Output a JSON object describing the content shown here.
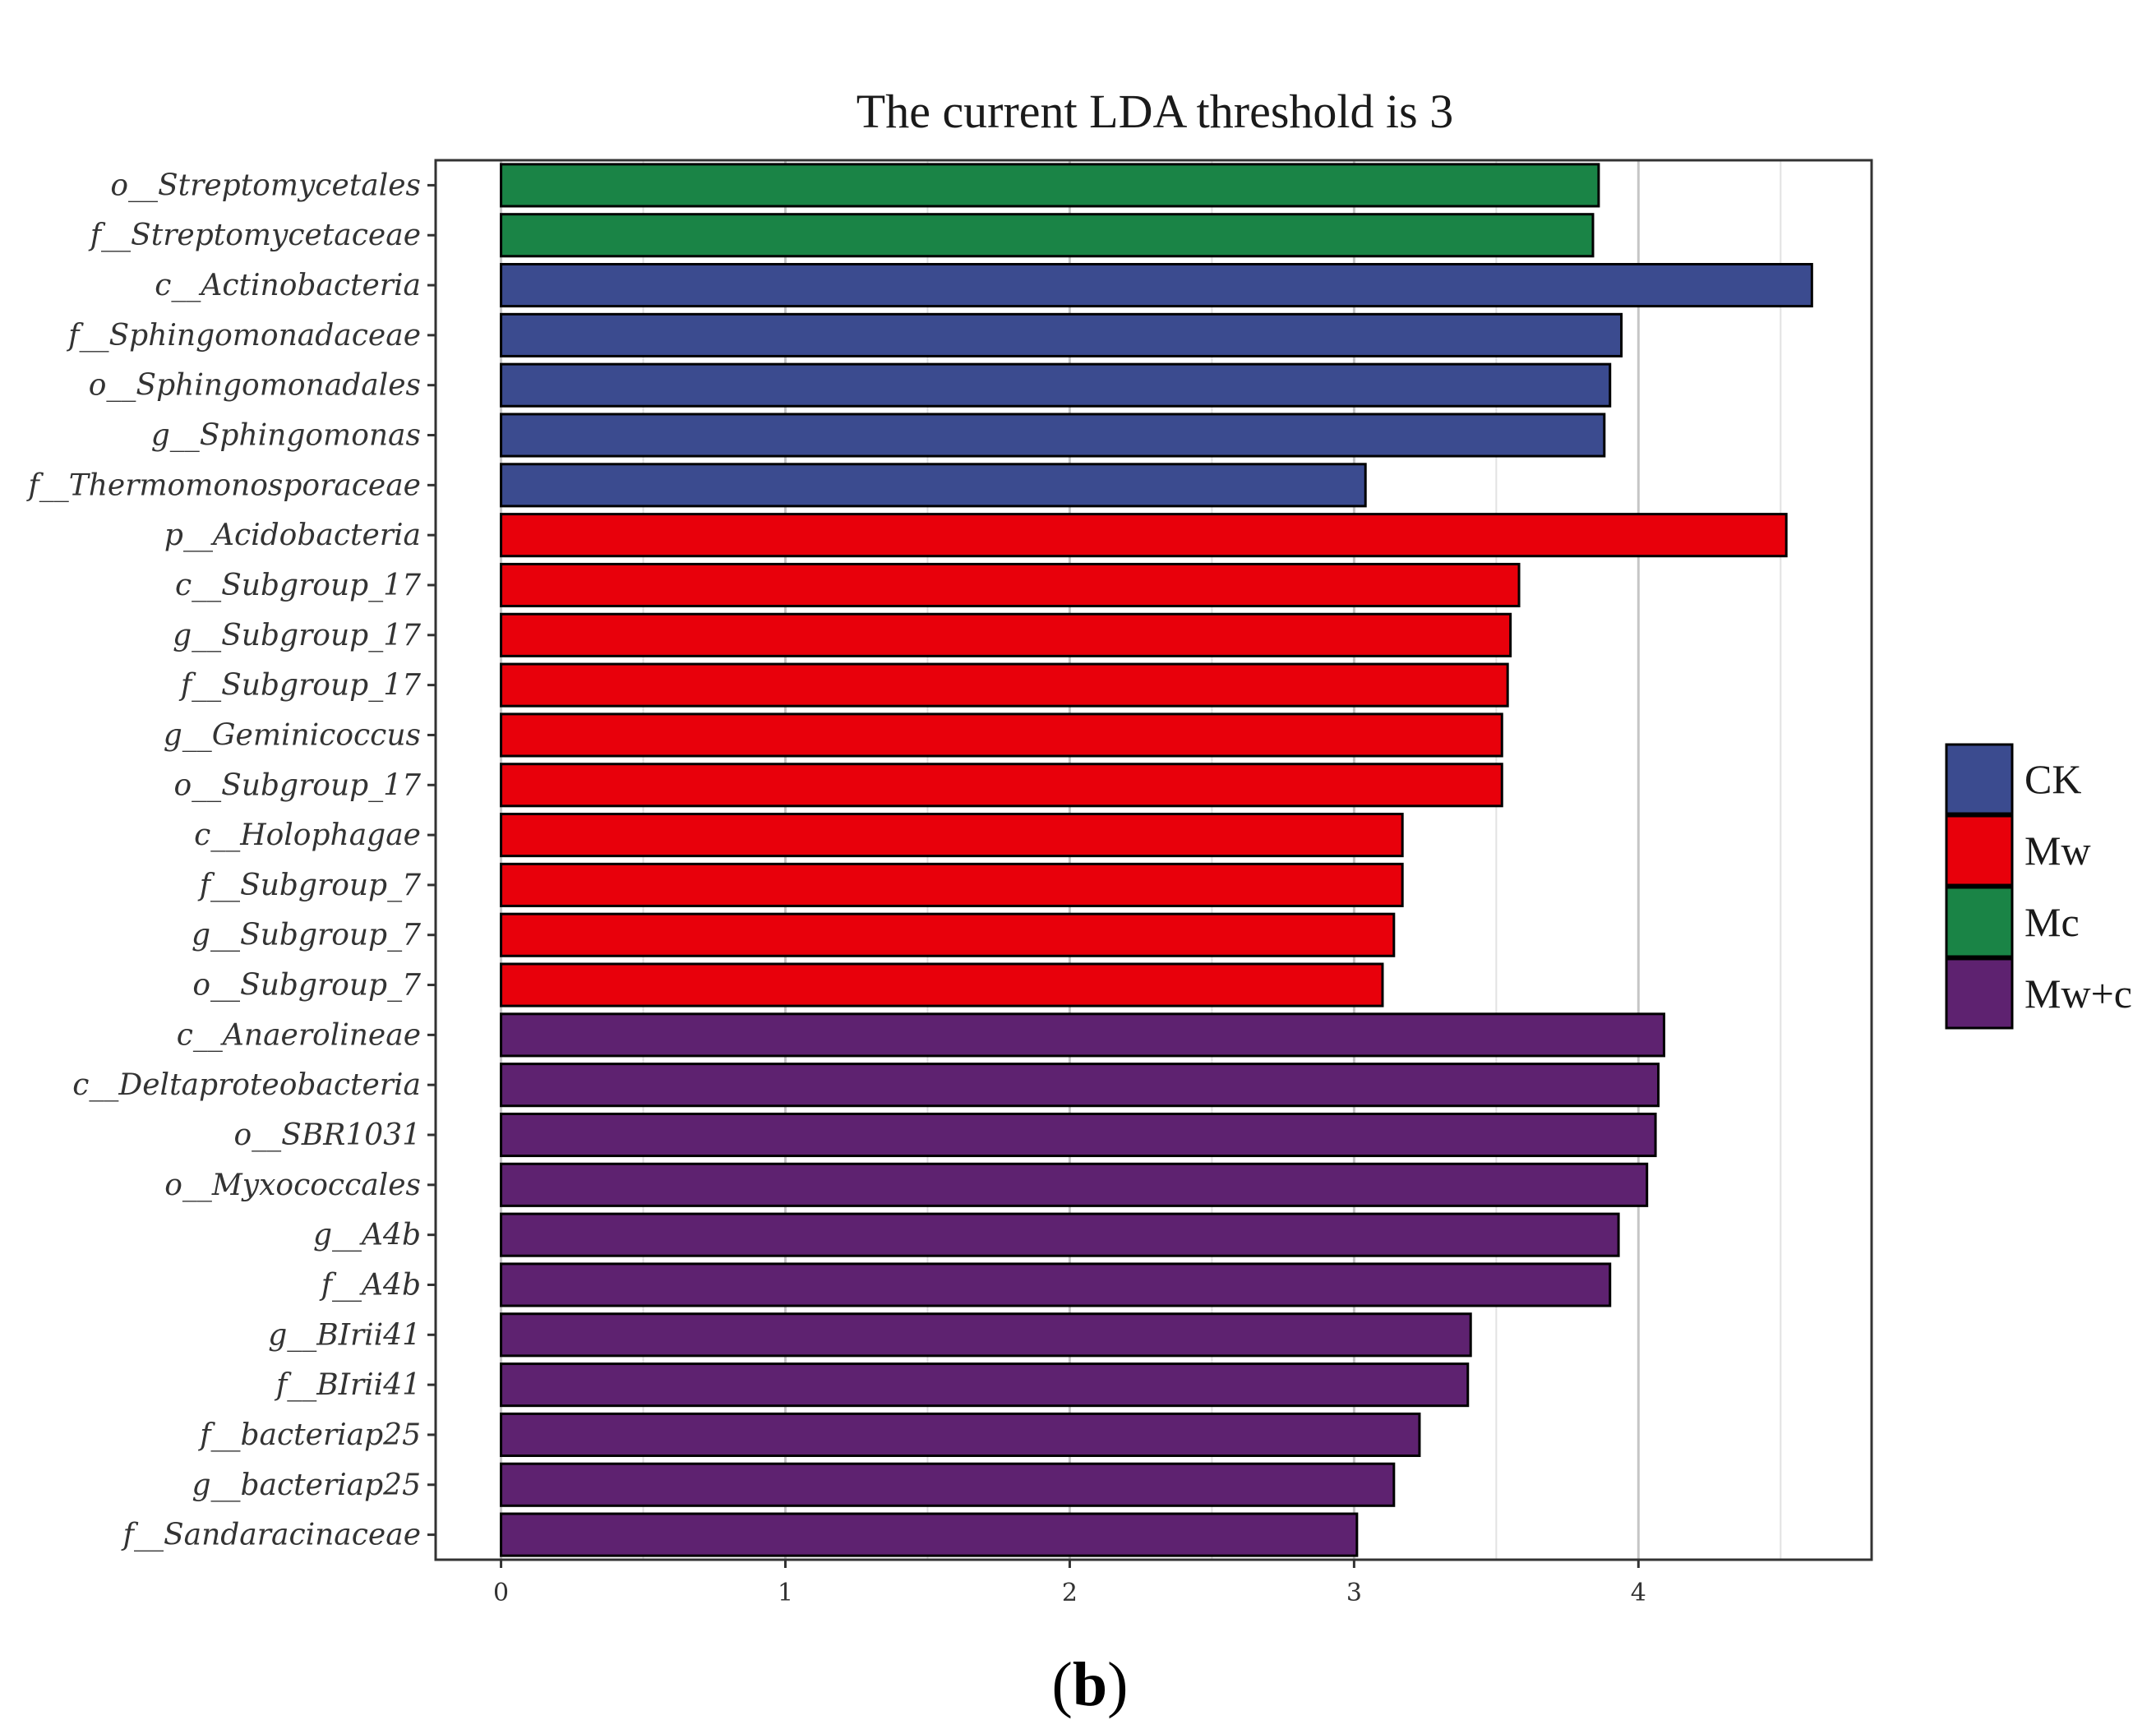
{
  "chart_data": {
    "type": "bar",
    "orientation": "horizontal",
    "title": "The current LDA threshold is 3",
    "caption_prefix": "(",
    "caption_letter": "b",
    "caption_suffix": ")",
    "xlabel": "",
    "ylabel": "",
    "xlim": [
      -0.23,
      4.82
    ],
    "xticks": [
      "0",
      "1",
      "2",
      "3",
      "4"
    ],
    "grid": true,
    "legend_position": "right",
    "groups": [
      {
        "name": "CK",
        "color": "#3b4b8f"
      },
      {
        "name": "Mw",
        "color": "#e8000b"
      },
      {
        "name": "Mc",
        "color": "#1a8446"
      },
      {
        "name": "Mw+c",
        "color": "#5e2270"
      }
    ],
    "categories": [
      "o__Streptomycetales",
      "f__Streptomycetaceae",
      "c__Actinobacteria",
      "f__Sphingomonadaceae",
      "o__Sphingomonadales",
      "g__Sphingomonas",
      "f__Thermomonosporaceae",
      "p__Acidobacteria",
      "c__Subgroup_17",
      "g__Subgroup_17",
      "f__Subgroup_17",
      "g__Geminicoccus",
      "o__Subgroup_17",
      "c__Holophagae",
      "f__Subgroup_7",
      "g__Subgroup_7",
      "o__Subgroup_7",
      "c__Anaerolineae",
      "c__Deltaproteobacteria",
      "o__SBR1031",
      "o__Myxococcales",
      "g__A4b",
      "f__A4b",
      "g__BIrii41",
      "f__BIrii41",
      "f__bacteriap25",
      "g__bacteriap25",
      "f__Sandaracinaceae"
    ],
    "values": [
      3.86,
      3.84,
      4.61,
      3.94,
      3.9,
      3.88,
      3.04,
      4.52,
      3.58,
      3.55,
      3.54,
      3.52,
      3.52,
      3.17,
      3.17,
      3.14,
      3.1,
      4.09,
      4.07,
      4.06,
      4.03,
      3.93,
      3.9,
      3.41,
      3.4,
      3.23,
      3.14,
      3.01
    ],
    "bar_groups": [
      "Mc",
      "Mc",
      "CK",
      "CK",
      "CK",
      "CK",
      "CK",
      "Mw",
      "Mw",
      "Mw",
      "Mw",
      "Mw",
      "Mw",
      "Mw",
      "Mw",
      "Mw",
      "Mw",
      "Mw+c",
      "Mw+c",
      "Mw+c",
      "Mw+c",
      "Mw+c",
      "Mw+c",
      "Mw+c",
      "Mw+c",
      "Mw+c",
      "Mw+c",
      "Mw+c"
    ]
  }
}
